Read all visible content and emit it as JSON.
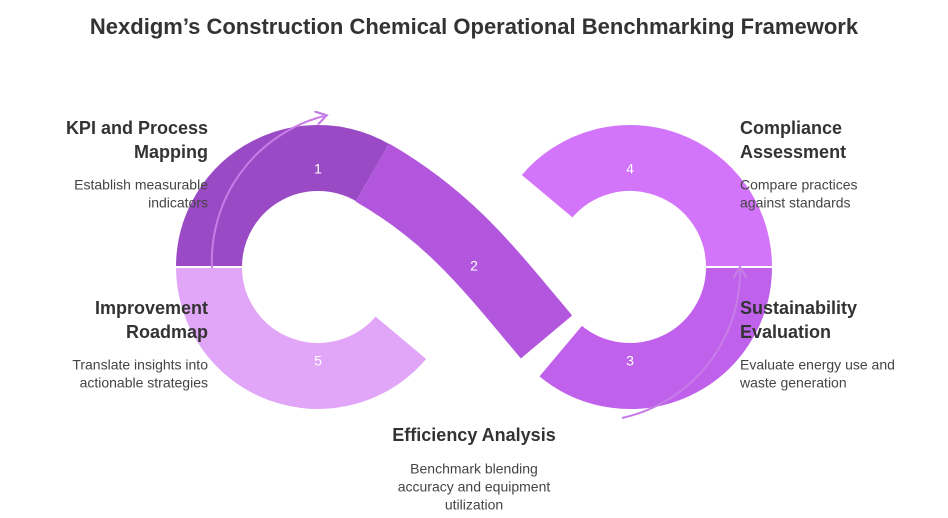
{
  "title": "Nexdigm’s Construction Chemical Operational Benchmarking Framework",
  "steps": [
    {
      "number": "1",
      "title": [
        "KPI and Process",
        "Mapping"
      ],
      "description": [
        "Establish measurable",
        "indicators"
      ]
    },
    {
      "number": "2",
      "title": [
        "Efficiency Analysis"
      ],
      "description": [
        "Benchmark blending",
        "accuracy and equipment",
        "utilization"
      ]
    },
    {
      "number": "3",
      "title": [
        "Sustainability",
        "Evaluation"
      ],
      "description": [
        "Evaluate energy use and",
        "waste generation"
      ]
    },
    {
      "number": "4",
      "title": [
        "Compliance",
        "Assessment"
      ],
      "description": [
        "Compare practices",
        "against standards"
      ]
    },
    {
      "number": "5",
      "title": [
        "Improvement",
        "Roadmap"
      ],
      "description": [
        "Translate insights into",
        "actionable strategies"
      ]
    }
  ]
}
